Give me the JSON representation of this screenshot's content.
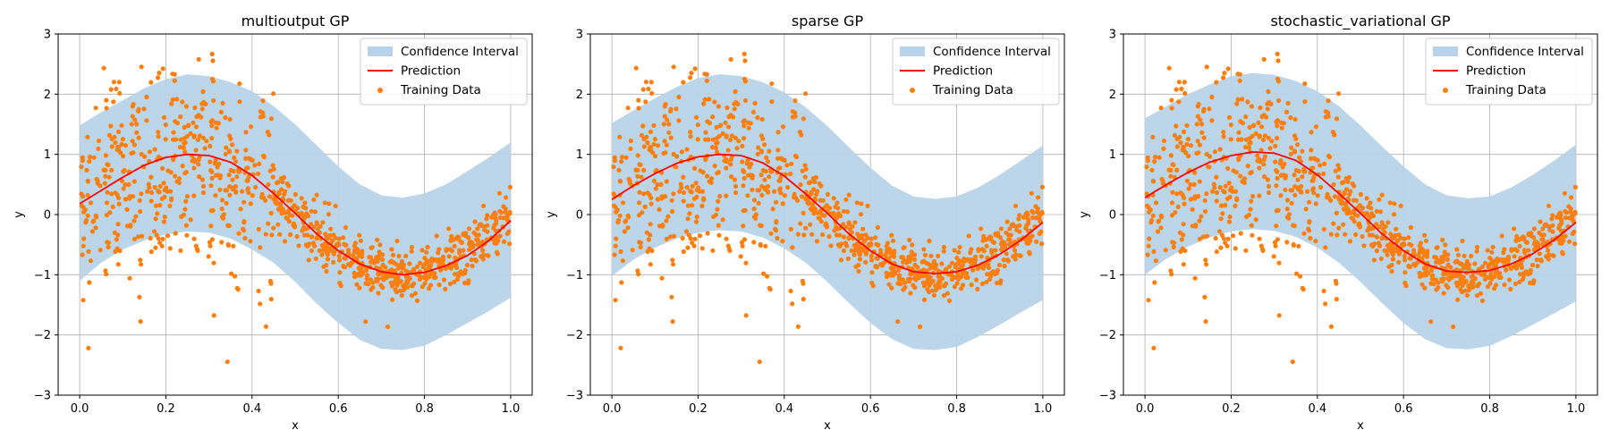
{
  "chart_data": [
    {
      "type": "scatter",
      "title": "multioutput GP",
      "xlabel": "x",
      "ylabel": "y",
      "xlim": [
        -0.05,
        1.05
      ],
      "ylim": [
        -3,
        3
      ],
      "xticks": [
        0.0,
        0.2,
        0.4,
        0.6,
        0.8,
        1.0
      ],
      "xtick_labels": [
        "0.0",
        "0.2",
        "0.4",
        "0.6",
        "0.8",
        "1.0"
      ],
      "yticks": [
        -3,
        -2,
        -1,
        0,
        1,
        2,
        3
      ],
      "ytick_labels": [
        "−3",
        "−2",
        "−1",
        "0",
        "1",
        "2",
        "3"
      ],
      "grid": true,
      "legend_position": "top-right",
      "series": [
        {
          "name": "Confidence Interval",
          "kind": "band",
          "color": "#b8d3e8",
          "x": [
            0.0,
            0.05,
            0.1,
            0.15,
            0.2,
            0.25,
            0.3,
            0.35,
            0.4,
            0.45,
            0.5,
            0.55,
            0.6,
            0.65,
            0.7,
            0.75,
            0.8,
            0.85,
            0.9,
            0.95,
            1.0
          ],
          "lower": [
            -1.1,
            -0.8,
            -0.58,
            -0.43,
            -0.33,
            -0.28,
            -0.3,
            -0.4,
            -0.58,
            -0.8,
            -1.12,
            -1.48,
            -1.8,
            -2.08,
            -2.23,
            -2.25,
            -2.18,
            -2.0,
            -1.8,
            -1.6,
            -1.38
          ],
          "upper": [
            1.48,
            1.7,
            1.9,
            2.1,
            2.25,
            2.33,
            2.3,
            2.2,
            2.05,
            1.8,
            1.5,
            1.15,
            0.8,
            0.5,
            0.32,
            0.28,
            0.35,
            0.5,
            0.72,
            0.95,
            1.2
          ]
        },
        {
          "name": "Prediction",
          "kind": "line",
          "color": "#ff0000",
          "x": [
            0.0,
            0.05,
            0.1,
            0.15,
            0.2,
            0.25,
            0.3,
            0.35,
            0.4,
            0.45,
            0.5,
            0.55,
            0.6,
            0.65,
            0.7,
            0.75,
            0.8,
            0.85,
            0.9,
            0.95,
            1.0
          ],
          "y": [
            0.18,
            0.4,
            0.62,
            0.82,
            0.95,
            1.0,
            0.98,
            0.87,
            0.65,
            0.35,
            0.02,
            -0.32,
            -0.6,
            -0.82,
            -0.95,
            -1.0,
            -0.96,
            -0.85,
            -0.68,
            -0.43,
            -0.1
          ]
        },
        {
          "name": "Training Data",
          "kind": "points",
          "color": "#ff7f0e",
          "n": 1000,
          "noise_switch_x": 0.45,
          "noise_sd_low_x": 0.85,
          "noise_sd_high_x": 0.22
        }
      ]
    },
    {
      "type": "scatter",
      "title": "sparse GP",
      "xlabel": "x",
      "ylabel": "y",
      "xlim": [
        -0.05,
        1.05
      ],
      "ylim": [
        -3,
        3
      ],
      "xticks": [
        0.0,
        0.2,
        0.4,
        0.6,
        0.8,
        1.0
      ],
      "xtick_labels": [
        "0.0",
        "0.2",
        "0.4",
        "0.6",
        "0.8",
        "1.0"
      ],
      "yticks": [
        -3,
        -2,
        -1,
        0,
        1,
        2,
        3
      ],
      "ytick_labels": [
        "−3",
        "−2",
        "−1",
        "0",
        "1",
        "2",
        "3"
      ],
      "grid": true,
      "legend_position": "top-right",
      "series": [
        {
          "name": "Confidence Interval",
          "kind": "band",
          "color": "#b8d3e8",
          "x": [
            0.0,
            0.05,
            0.1,
            0.15,
            0.2,
            0.25,
            0.3,
            0.35,
            0.4,
            0.45,
            0.5,
            0.55,
            0.6,
            0.65,
            0.7,
            0.75,
            0.8,
            0.85,
            0.9,
            0.95,
            1.0
          ],
          "lower": [
            -1.02,
            -0.75,
            -0.55,
            -0.4,
            -0.3,
            -0.26,
            -0.28,
            -0.38,
            -0.56,
            -0.8,
            -1.12,
            -1.47,
            -1.8,
            -2.07,
            -2.23,
            -2.25,
            -2.2,
            -2.03,
            -1.83,
            -1.62,
            -1.42
          ],
          "upper": [
            1.52,
            1.73,
            1.93,
            2.12,
            2.27,
            2.33,
            2.3,
            2.2,
            2.03,
            1.78,
            1.47,
            1.12,
            0.78,
            0.48,
            0.3,
            0.26,
            0.3,
            0.45,
            0.66,
            0.9,
            1.15
          ]
        },
        {
          "name": "Prediction",
          "kind": "line",
          "color": "#ff0000",
          "x": [
            0.0,
            0.05,
            0.1,
            0.15,
            0.2,
            0.25,
            0.3,
            0.35,
            0.4,
            0.45,
            0.5,
            0.55,
            0.6,
            0.65,
            0.7,
            0.75,
            0.8,
            0.85,
            0.9,
            0.95,
            1.0
          ],
          "y": [
            0.25,
            0.48,
            0.68,
            0.85,
            0.96,
            1.0,
            0.98,
            0.86,
            0.64,
            0.34,
            0.02,
            -0.32,
            -0.6,
            -0.82,
            -0.95,
            -0.98,
            -0.95,
            -0.84,
            -0.66,
            -0.42,
            -0.13
          ]
        },
        {
          "name": "Training Data",
          "kind": "points",
          "color": "#ff7f0e",
          "n": 1000,
          "noise_switch_x": 0.45,
          "noise_sd_low_x": 0.85,
          "noise_sd_high_x": 0.22
        }
      ]
    },
    {
      "type": "scatter",
      "title": "stochastic_variational GP",
      "xlabel": "x",
      "ylabel": "y",
      "xlim": [
        -0.05,
        1.05
      ],
      "ylim": [
        -3,
        3
      ],
      "xticks": [
        0.0,
        0.2,
        0.4,
        0.6,
        0.8,
        1.0
      ],
      "xtick_labels": [
        "0.0",
        "0.2",
        "0.4",
        "0.6",
        "0.8",
        "1.0"
      ],
      "yticks": [
        -3,
        -2,
        -1,
        0,
        1,
        2,
        3
      ],
      "ytick_labels": [
        "−3",
        "−2",
        "−1",
        "0",
        "1",
        "2",
        "3"
      ],
      "grid": true,
      "legend_position": "top-right",
      "series": [
        {
          "name": "Confidence Interval",
          "kind": "band",
          "color": "#b8d3e8",
          "x": [
            0.0,
            0.05,
            0.1,
            0.15,
            0.2,
            0.25,
            0.3,
            0.35,
            0.4,
            0.45,
            0.5,
            0.55,
            0.6,
            0.65,
            0.7,
            0.75,
            0.8,
            0.85,
            0.9,
            0.95,
            1.0
          ],
          "lower": [
            -1.0,
            -0.73,
            -0.53,
            -0.38,
            -0.28,
            -0.24,
            -0.27,
            -0.37,
            -0.55,
            -0.8,
            -1.12,
            -1.47,
            -1.8,
            -2.07,
            -2.22,
            -2.24,
            -2.18,
            -2.02,
            -1.83,
            -1.64,
            -1.44
          ],
          "upper": [
            1.6,
            1.8,
            2.0,
            2.16,
            2.3,
            2.35,
            2.32,
            2.22,
            2.05,
            1.8,
            1.48,
            1.13,
            0.8,
            0.5,
            0.32,
            0.27,
            0.3,
            0.45,
            0.66,
            0.9,
            1.16
          ]
        },
        {
          "name": "Prediction",
          "kind": "line",
          "color": "#ff0000",
          "x": [
            0.0,
            0.05,
            0.1,
            0.15,
            0.2,
            0.25,
            0.3,
            0.35,
            0.4,
            0.45,
            0.5,
            0.55,
            0.6,
            0.65,
            0.7,
            0.75,
            0.8,
            0.85,
            0.9,
            0.95,
            1.0
          ],
          "y": [
            0.28,
            0.5,
            0.7,
            0.87,
            0.98,
            1.04,
            1.02,
            0.9,
            0.66,
            0.35,
            0.02,
            -0.32,
            -0.6,
            -0.82,
            -0.94,
            -0.96,
            -0.93,
            -0.82,
            -0.65,
            -0.42,
            -0.13
          ]
        },
        {
          "name": "Training Data",
          "kind": "points",
          "color": "#ff7f0e",
          "n": 1000,
          "noise_switch_x": 0.45,
          "noise_sd_low_x": 0.85,
          "noise_sd_high_x": 0.22
        }
      ]
    }
  ]
}
